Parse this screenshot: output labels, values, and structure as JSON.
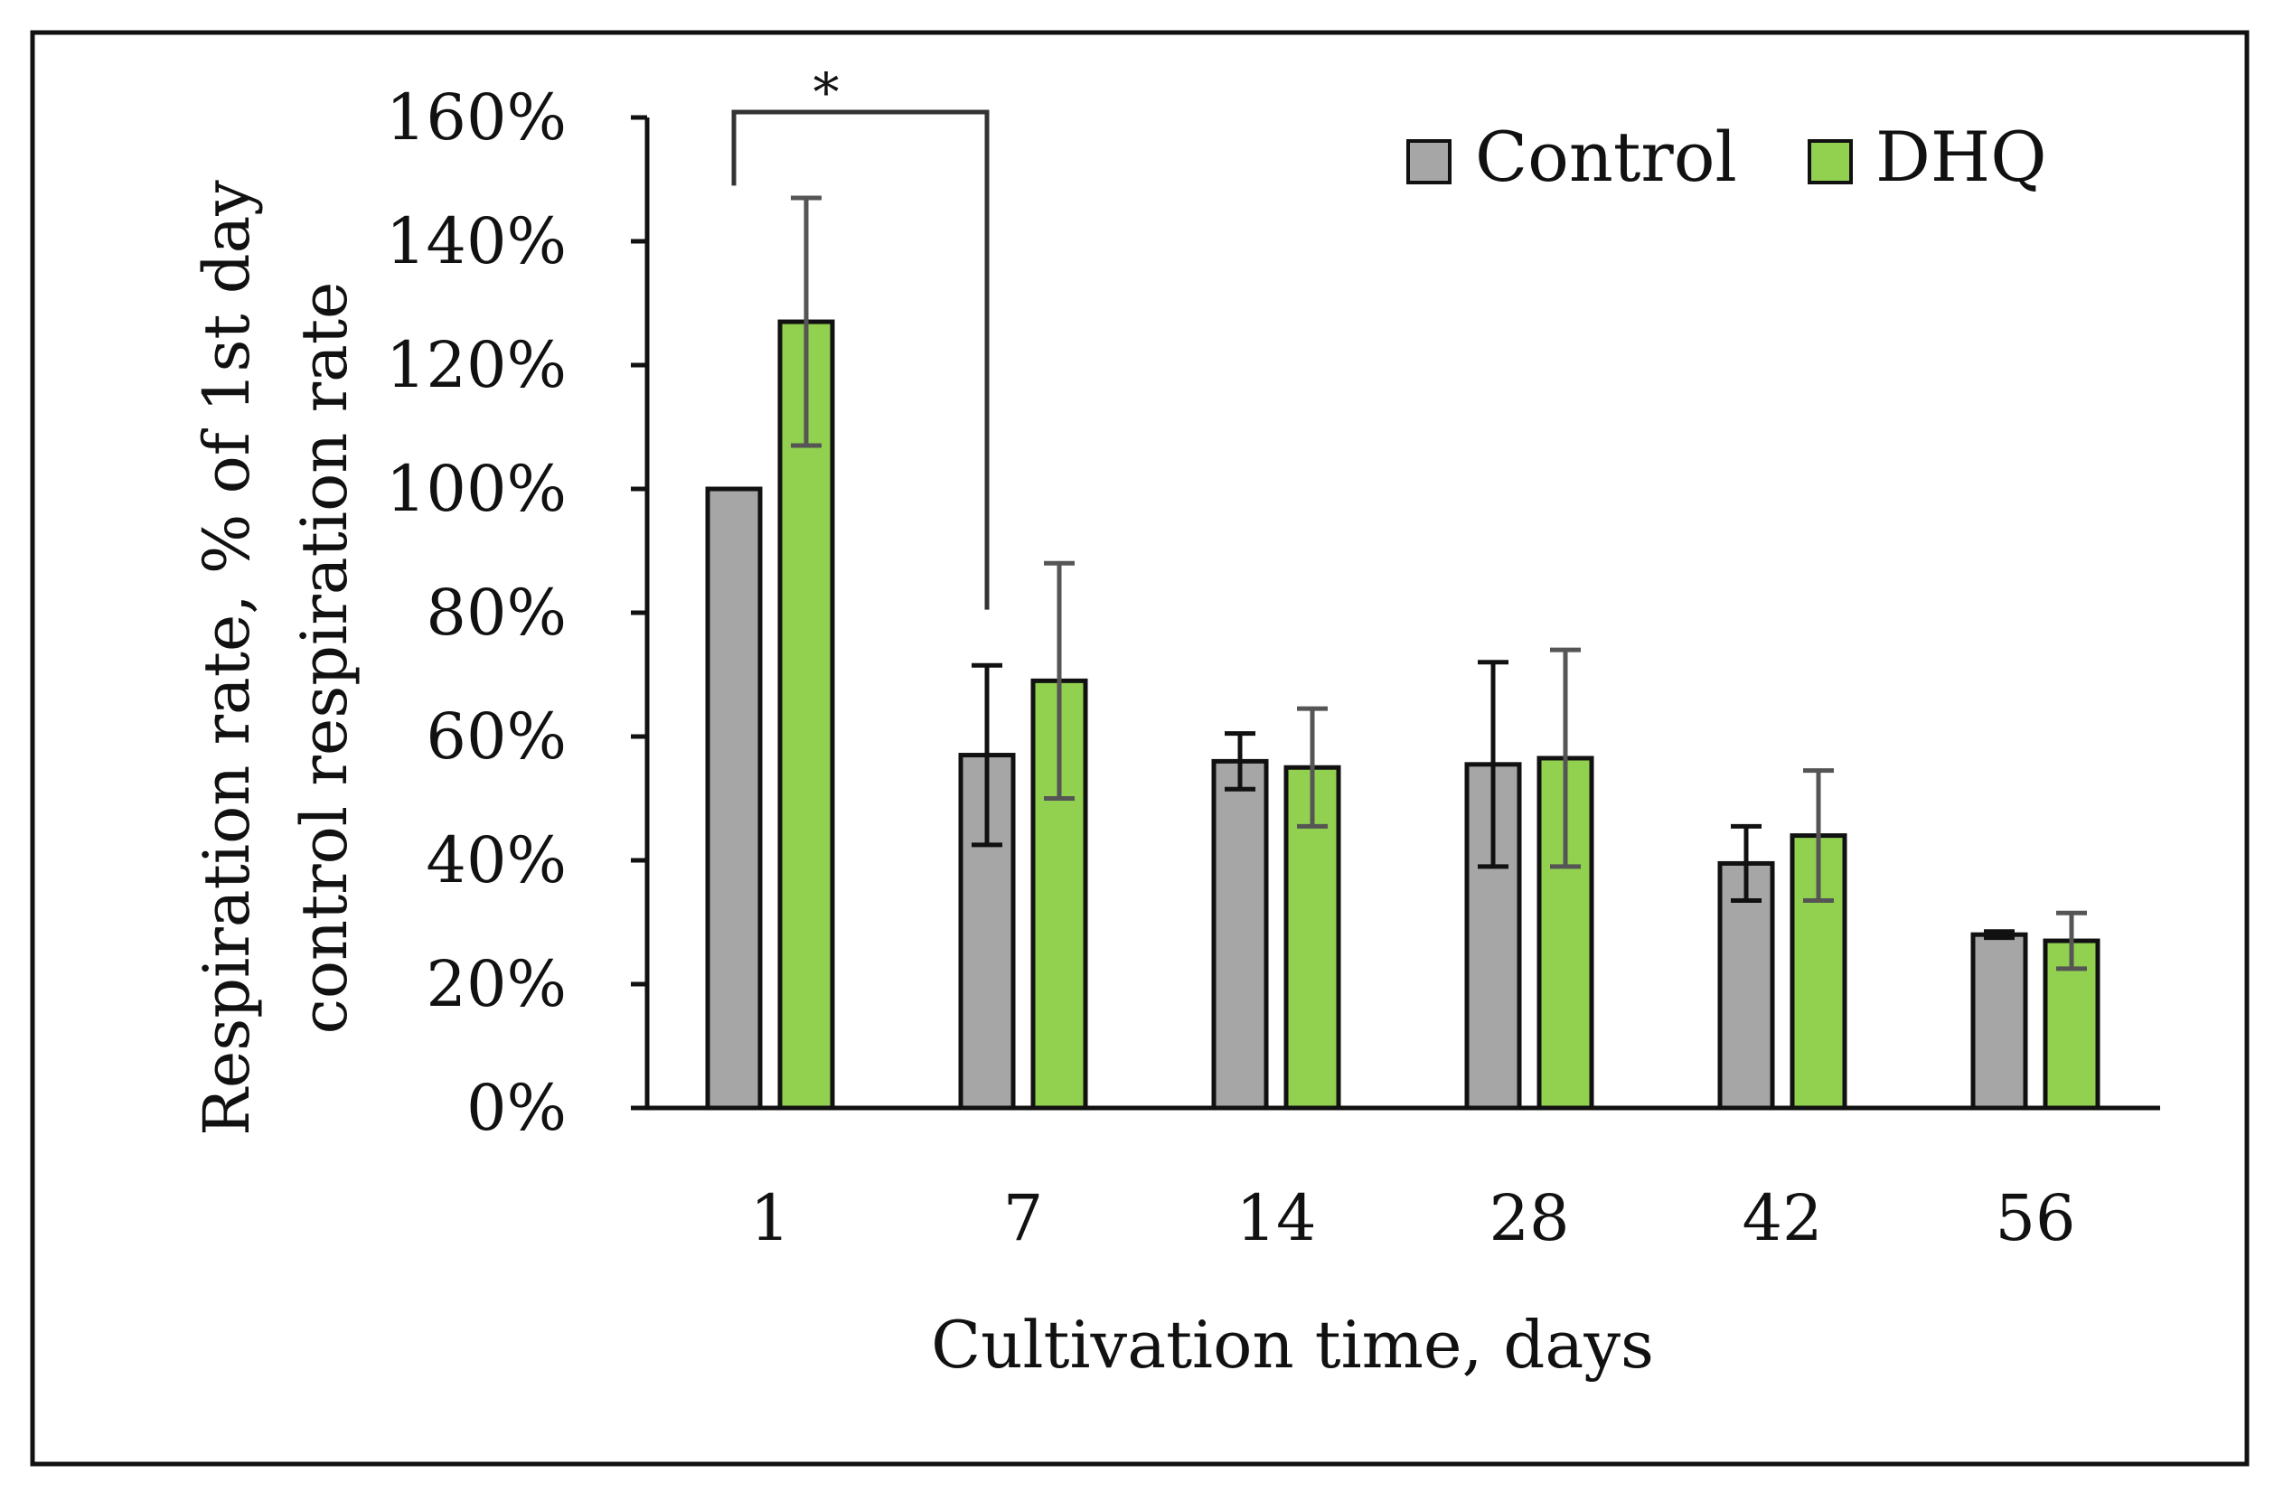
{
  "chart_data": {
    "type": "bar",
    "title": "",
    "xlabel": "Cultivation time, days",
    "ylabel_lines": [
      "Respiration rate, % of 1st day",
      "control respiration rate"
    ],
    "categories": [
      "1",
      "7",
      "14",
      "28",
      "42",
      "56"
    ],
    "ylim": [
      0,
      160
    ],
    "yticks": [
      0,
      20,
      40,
      60,
      80,
      100,
      120,
      140,
      160
    ],
    "ytick_labels": [
      "0%",
      "20%",
      "40%",
      "60%",
      "80%",
      "100%",
      "120%",
      "140%",
      "160%"
    ],
    "grid": false,
    "legend_position": "top-right",
    "series": [
      {
        "name": "Control",
        "color": "#a6a6a6",
        "values": [
          100,
          57,
          56,
          55.5,
          39.5,
          28
        ],
        "errors": [
          0,
          14.5,
          4.5,
          16.5,
          6,
          0.5
        ]
      },
      {
        "name": "DHQ",
        "color": "#92d050",
        "values": [
          127,
          69,
          55,
          56.5,
          44,
          27
        ],
        "errors": [
          20,
          19,
          9.5,
          17.5,
          10.5,
          4.5
        ]
      }
    ],
    "annotations": [
      {
        "text": "*",
        "between": [
          "Control 1",
          "Control 7"
        ],
        "type": "significance-bracket"
      }
    ]
  },
  "colors": {
    "axis": "#111111",
    "bar_stroke": "#111111",
    "control_error": "#111111",
    "dhq_error": "#555555",
    "bracket": "#333333",
    "frame": "#111111"
  }
}
